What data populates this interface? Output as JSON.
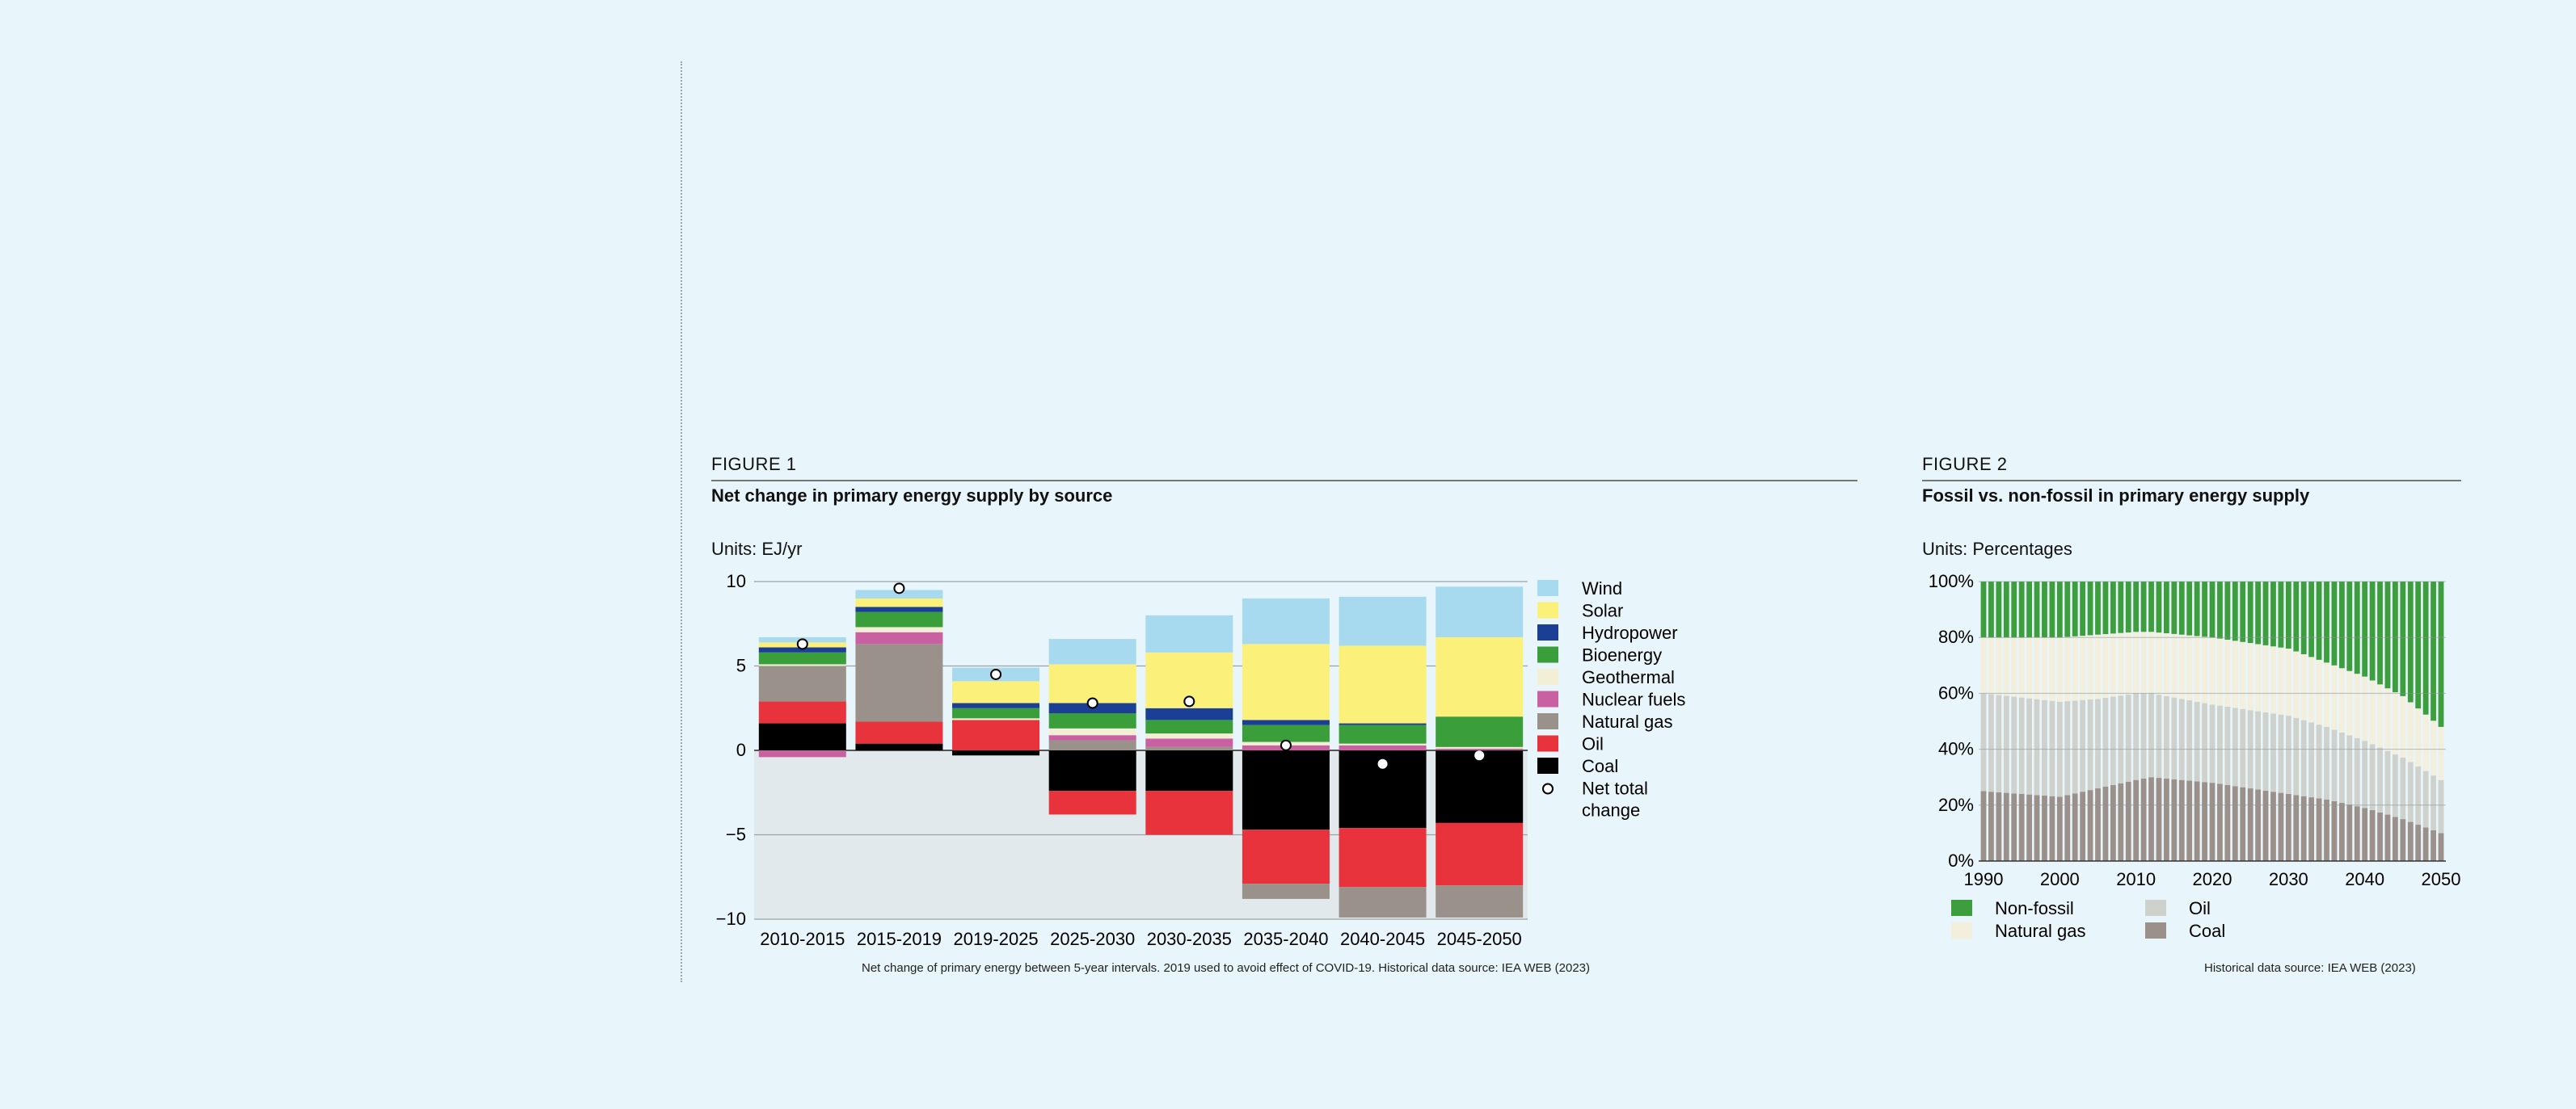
{
  "figure1": {
    "label": "FIGURE 1",
    "title": "Net change in primary energy supply by source",
    "units_label": "Units:",
    "units_value": "EJ/yr",
    "note": "Net change of primary energy between 5-year intervals. 2019 used to avoid effect of COVID-19. Historical data source: IEA WEB (2023)"
  },
  "figure2": {
    "label": "FIGURE 2",
    "title": "Fossil vs. non-fossil in primary energy supply",
    "units_label": "Units:",
    "units_value": "Percentages",
    "note": "Historical data source: IEA WEB (2023)"
  },
  "chart_data": [
    {
      "type": "bar",
      "stacked": true,
      "categories": [
        "2010-2015",
        "2015-2019",
        "2019-2025",
        "2025-2030",
        "2030-2035",
        "2035-2040",
        "2040-2045",
        "2045-2050"
      ],
      "ylim": [
        -10,
        10
      ],
      "yticks": [
        10,
        5,
        0,
        -5,
        -10
      ],
      "ytick_labels": [
        "10",
        "5",
        "0",
        "−5",
        "−10"
      ],
      "legend_position": "right",
      "series": [
        {
          "name": "Coal",
          "color": "#000000",
          "values": [
            1.6,
            0.4,
            -0.3,
            -2.4,
            -2.4,
            -4.7,
            -4.6,
            -4.3
          ]
        },
        {
          "name": "Oil",
          "color": "#e8323c",
          "values": [
            1.3,
            1.3,
            1.8,
            -1.4,
            -2.6,
            -3.2,
            -3.5,
            -3.7
          ]
        },
        {
          "name": "Natural gas",
          "color": "#9a918a",
          "values": [
            2.1,
            4.6,
            0.0,
            0.6,
            0.2,
            -0.9,
            -1.8,
            -1.9
          ]
        },
        {
          "name": "Nuclear fuels",
          "color": "#c960a1",
          "values": [
            -0.4,
            0.7,
            0.0,
            0.3,
            0.5,
            0.3,
            0.3,
            0.1
          ]
        },
        {
          "name": "Geothermal",
          "color": "#f2efd6",
          "values": [
            0.1,
            0.3,
            0.1,
            0.4,
            0.3,
            0.2,
            0.1,
            0.1
          ]
        },
        {
          "name": "Bioenergy",
          "color": "#3a9e3a",
          "values": [
            0.7,
            0.9,
            0.6,
            0.9,
            0.8,
            1.0,
            1.1,
            1.8
          ]
        },
        {
          "name": "Hydropower",
          "color": "#1a3f95",
          "values": [
            0.3,
            0.3,
            0.3,
            0.6,
            0.7,
            0.3,
            0.1,
            0.0
          ]
        },
        {
          "name": "Solar",
          "color": "#fbf07a",
          "values": [
            0.3,
            0.5,
            1.3,
            2.3,
            3.3,
            4.5,
            4.6,
            4.7
          ]
        },
        {
          "name": "Wind",
          "color": "#a8daef",
          "values": [
            0.3,
            0.5,
            0.8,
            1.5,
            2.2,
            2.7,
            2.9,
            3.0
          ]
        }
      ],
      "net_total_label_lines": [
        "Net total",
        "change"
      ],
      "net_total": [
        6.3,
        9.6,
        4.5,
        2.8,
        2.9,
        0.3,
        -0.8,
        -0.3
      ]
    },
    {
      "type": "area",
      "stacked": true,
      "x_start": 1990,
      "x_end": 2050,
      "xticks": [
        1990,
        2000,
        2010,
        2020,
        2030,
        2040,
        2050
      ],
      "yticks": [
        0,
        20,
        40,
        60,
        80,
        100
      ],
      "ytick_labels": [
        "0%",
        "20%",
        "40%",
        "60%",
        "80%",
        "100%"
      ],
      "ylim": [
        0,
        100
      ],
      "legend_position": "bottom",
      "series": [
        {
          "name": "Coal",
          "color": "#9b918a",
          "x": [
            1990,
            2000,
            2005,
            2010,
            2012,
            2020,
            2025,
            2030,
            2035,
            2040,
            2045,
            2050
          ],
          "y": [
            25,
            23,
            26,
            29,
            30,
            28,
            26,
            24,
            22,
            19,
            15,
            10
          ]
        },
        {
          "name": "Oil",
          "color": "#cfd2cc",
          "x": [
            1990,
            2000,
            2005,
            2010,
            2012,
            2020,
            2025,
            2030,
            2035,
            2040,
            2045,
            2050
          ],
          "y": [
            35,
            34,
            32,
            31,
            30,
            28,
            28,
            28,
            26,
            24,
            22,
            19
          ]
        },
        {
          "name": "Natural gas",
          "color": "#f3efdc",
          "x": [
            1990,
            2000,
            2005,
            2010,
            2012,
            2020,
            2025,
            2030,
            2035,
            2040,
            2045,
            2050
          ],
          "y": [
            20,
            23,
            23,
            22,
            22,
            24,
            24,
            24,
            23,
            23,
            22,
            19
          ]
        },
        {
          "name": "Non-fossil",
          "color": "#3c9e3c",
          "x": [
            1990,
            2000,
            2005,
            2010,
            2012,
            2020,
            2025,
            2030,
            2035,
            2040,
            2045,
            2050
          ],
          "y": [
            20,
            20,
            19,
            18,
            18,
            20,
            22,
            24,
            29,
            34,
            41,
            52
          ]
        }
      ],
      "legend_order": [
        "Non-fossil",
        "Oil",
        "Natural gas",
        "Coal"
      ]
    }
  ]
}
